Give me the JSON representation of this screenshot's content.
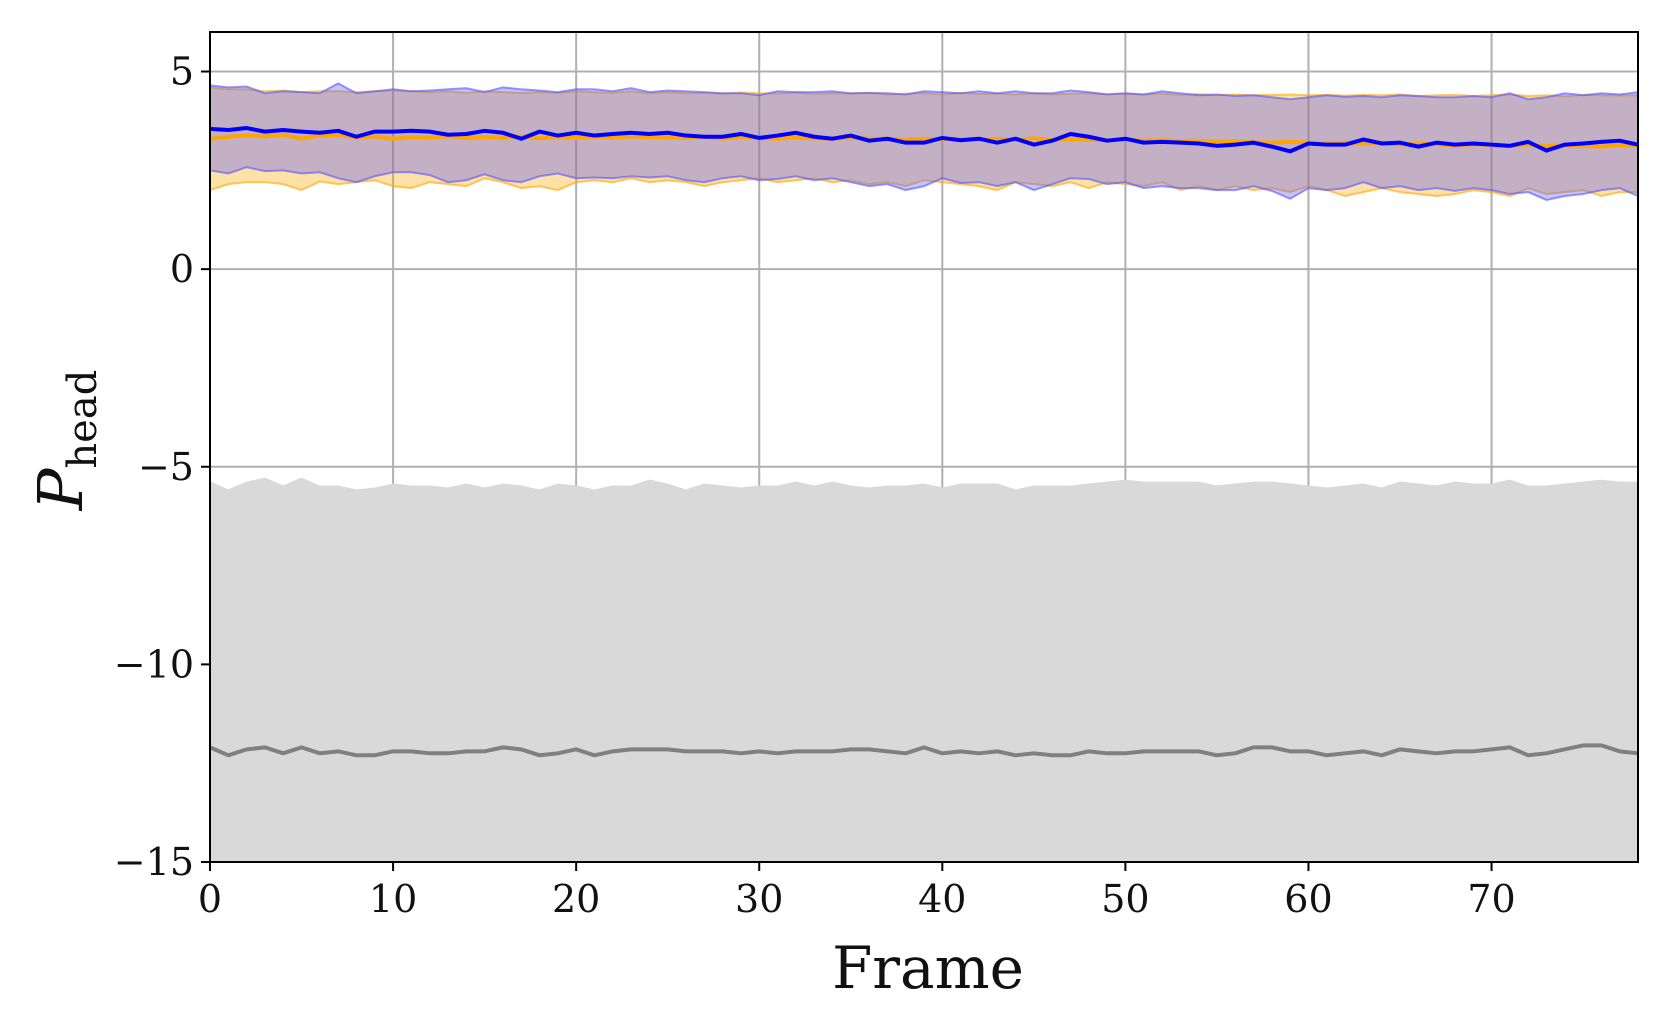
{
  "chart_data": {
    "type": "area",
    "title": "",
    "xlabel": "Frame",
    "ylabel": "P",
    "ylabel_subscript": "head",
    "xlim": [
      0,
      78
    ],
    "ylim": [
      -15,
      6
    ],
    "xticks": [
      0,
      10,
      20,
      30,
      40,
      50,
      60,
      70
    ],
    "yticks": [
      5,
      0,
      -5,
      -10,
      -15
    ],
    "xtick_labels": [
      "0",
      "10",
      "20",
      "30",
      "40",
      "50",
      "60",
      "70"
    ],
    "ytick_labels": [
      "5",
      "0",
      "−5",
      "−10",
      "−15"
    ],
    "grid": true,
    "legend": "none",
    "x": [
      0,
      1,
      2,
      3,
      4,
      5,
      6,
      7,
      8,
      9,
      10,
      11,
      12,
      13,
      14,
      15,
      16,
      17,
      18,
      19,
      20,
      21,
      22,
      23,
      24,
      25,
      26,
      27,
      28,
      29,
      30,
      31,
      32,
      33,
      34,
      35,
      36,
      37,
      38,
      39,
      40,
      41,
      42,
      43,
      44,
      45,
      46,
      47,
      48,
      49,
      50,
      51,
      52,
      53,
      54,
      55,
      56,
      57,
      58,
      59,
      60,
      61,
      62,
      63,
      64,
      65,
      66,
      67,
      68,
      69,
      70,
      71,
      72,
      73,
      74,
      75,
      76,
      77,
      78
    ],
    "series": [
      {
        "color": "#ffa500",
        "band_color": "#ffa500",
        "mean": [
          3.3,
          3.35,
          3.38,
          3.36,
          3.4,
          3.3,
          3.38,
          3.4,
          3.33,
          3.36,
          3.3,
          3.34,
          3.33,
          3.36,
          3.32,
          3.34,
          3.33,
          3.36,
          3.31,
          3.34,
          3.32,
          3.35,
          3.33,
          3.36,
          3.34,
          3.33,
          3.32,
          3.35,
          3.3,
          3.34,
          3.32,
          3.3,
          3.33,
          3.31,
          3.3,
          3.32,
          3.3,
          3.3,
          3.28,
          3.3,
          3.29,
          3.3,
          3.28,
          3.3,
          3.27,
          3.31,
          3.27,
          3.29,
          3.27,
          3.26,
          3.28,
          3.25,
          3.27,
          3.24,
          3.25,
          3.23,
          3.24,
          3.21,
          3.2,
          3.22,
          3.2,
          3.18,
          3.2,
          3.17,
          3.2,
          3.15,
          3.18,
          3.16,
          3.12,
          3.16,
          3.14,
          3.12,
          3.15,
          3.11,
          3.14,
          3.12,
          3.1,
          3.14,
          3.12
        ],
        "upper": [
          4.6,
          4.55,
          4.55,
          4.5,
          4.52,
          4.48,
          4.5,
          4.5,
          4.48,
          4.5,
          4.52,
          4.5,
          4.48,
          4.5,
          4.46,
          4.5,
          4.48,
          4.46,
          4.48,
          4.46,
          4.5,
          4.48,
          4.46,
          4.5,
          4.45,
          4.48,
          4.45,
          4.46,
          4.44,
          4.47,
          4.45,
          4.44,
          4.47,
          4.43,
          4.45,
          4.44,
          4.46,
          4.42,
          4.44,
          4.45,
          4.42,
          4.46,
          4.43,
          4.44,
          4.42,
          4.45,
          4.42,
          4.44,
          4.45,
          4.43,
          4.44,
          4.42,
          4.44,
          4.41,
          4.43,
          4.4,
          4.42,
          4.4,
          4.41,
          4.42,
          4.4,
          4.41,
          4.39,
          4.41,
          4.4,
          4.42,
          4.38,
          4.4,
          4.41,
          4.38,
          4.4,
          4.42,
          4.38,
          4.4,
          4.37,
          4.41,
          4.4,
          4.39,
          4.4
        ],
        "lower": [
          2.0,
          2.15,
          2.2,
          2.2,
          2.15,
          2.0,
          2.22,
          2.15,
          2.2,
          2.25,
          2.1,
          2.05,
          2.2,
          2.15,
          2.1,
          2.3,
          2.2,
          2.05,
          2.1,
          2.0,
          2.2,
          2.25,
          2.2,
          2.3,
          2.2,
          2.25,
          2.2,
          2.1,
          2.2,
          2.25,
          2.3,
          2.2,
          2.25,
          2.3,
          2.2,
          2.25,
          2.15,
          2.2,
          2.1,
          2.25,
          2.2,
          2.15,
          2.1,
          2.0,
          2.2,
          2.15,
          2.1,
          2.2,
          2.05,
          2.2,
          2.15,
          2.1,
          2.2,
          2.0,
          2.1,
          2.0,
          2.1,
          2.0,
          2.05,
          1.95,
          2.1,
          2.0,
          1.85,
          1.95,
          2.05,
          1.95,
          1.9,
          1.85,
          1.9,
          2.0,
          1.95,
          1.85,
          2.05,
          1.9,
          1.95,
          2.0,
          1.85,
          1.95,
          1.95
        ]
      },
      {
        "color": "#0000ff",
        "band_color": "#5555ff",
        "mean": [
          3.55,
          3.52,
          3.57,
          3.48,
          3.52,
          3.48,
          3.45,
          3.5,
          3.35,
          3.48,
          3.48,
          3.5,
          3.48,
          3.4,
          3.42,
          3.5,
          3.45,
          3.3,
          3.48,
          3.38,
          3.45,
          3.38,
          3.42,
          3.45,
          3.42,
          3.45,
          3.38,
          3.35,
          3.35,
          3.42,
          3.32,
          3.38,
          3.45,
          3.35,
          3.3,
          3.38,
          3.25,
          3.3,
          3.2,
          3.2,
          3.32,
          3.26,
          3.3,
          3.2,
          3.3,
          3.15,
          3.25,
          3.42,
          3.35,
          3.25,
          3.3,
          3.2,
          3.22,
          3.2,
          3.18,
          3.12,
          3.15,
          3.2,
          3.1,
          2.98,
          3.18,
          3.15,
          3.15,
          3.28,
          3.18,
          3.2,
          3.1,
          3.2,
          3.15,
          3.18,
          3.15,
          3.12,
          3.22,
          3.0,
          3.15,
          3.18,
          3.22,
          3.25,
          3.15
        ],
        "upper": [
          4.65,
          4.6,
          4.62,
          4.45,
          4.5,
          4.48,
          4.45,
          4.7,
          4.45,
          4.5,
          4.55,
          4.5,
          4.52,
          4.55,
          4.58,
          4.48,
          4.6,
          4.55,
          4.52,
          4.48,
          4.55,
          4.55,
          4.5,
          4.58,
          4.48,
          4.52,
          4.5,
          4.48,
          4.45,
          4.45,
          4.4,
          4.5,
          4.48,
          4.48,
          4.5,
          4.45,
          4.46,
          4.45,
          4.42,
          4.5,
          4.48,
          4.45,
          4.5,
          4.45,
          4.5,
          4.45,
          4.45,
          4.52,
          4.48,
          4.42,
          4.45,
          4.42,
          4.5,
          4.45,
          4.4,
          4.42,
          4.38,
          4.4,
          4.35,
          4.3,
          4.35,
          4.4,
          4.36,
          4.38,
          4.35,
          4.4,
          4.38,
          4.35,
          4.35,
          4.38,
          4.35,
          4.45,
          4.3,
          4.35,
          4.45,
          4.4,
          4.45,
          4.42,
          4.48
        ],
        "lower": [
          2.5,
          2.42,
          2.58,
          2.48,
          2.5,
          2.42,
          2.45,
          2.3,
          2.2,
          2.35,
          2.45,
          2.45,
          2.38,
          2.2,
          2.25,
          2.4,
          2.25,
          2.2,
          2.35,
          2.42,
          2.3,
          2.32,
          2.3,
          2.35,
          2.32,
          2.35,
          2.25,
          2.2,
          2.3,
          2.35,
          2.25,
          2.28,
          2.35,
          2.25,
          2.3,
          2.2,
          2.1,
          2.15,
          2.0,
          2.1,
          2.3,
          2.18,
          2.2,
          2.1,
          2.2,
          2.0,
          2.15,
          2.3,
          2.28,
          2.15,
          2.2,
          2.05,
          2.1,
          2.05,
          2.05,
          2.0,
          2.0,
          2.1,
          1.98,
          1.78,
          2.05,
          2.0,
          2.05,
          2.2,
          2.05,
          2.1,
          2.0,
          2.05,
          1.98,
          2.05,
          2.0,
          1.9,
          1.95,
          1.75,
          1.85,
          1.9,
          2.0,
          2.05,
          1.85
        ]
      },
      {
        "color": "#808080",
        "band_color": "#d9d9d9",
        "mean": [
          -12.1,
          -12.3,
          -12.15,
          -12.1,
          -12.25,
          -12.1,
          -12.25,
          -12.2,
          -12.3,
          -12.3,
          -12.2,
          -12.2,
          -12.25,
          -12.25,
          -12.2,
          -12.2,
          -12.1,
          -12.15,
          -12.3,
          -12.25,
          -12.15,
          -12.3,
          -12.2,
          -12.15,
          -12.15,
          -12.15,
          -12.2,
          -12.2,
          -12.2,
          -12.25,
          -12.2,
          -12.25,
          -12.2,
          -12.2,
          -12.2,
          -12.15,
          -12.15,
          -12.2,
          -12.25,
          -12.1,
          -12.25,
          -12.2,
          -12.25,
          -12.2,
          -12.3,
          -12.25,
          -12.3,
          -12.3,
          -12.2,
          -12.25,
          -12.25,
          -12.2,
          -12.2,
          -12.2,
          -12.2,
          -12.3,
          -12.25,
          -12.1,
          -12.1,
          -12.2,
          -12.2,
          -12.3,
          -12.25,
          -12.2,
          -12.3,
          -12.15,
          -12.2,
          -12.25,
          -12.2,
          -12.2,
          -12.15,
          -12.1,
          -12.3,
          -12.25,
          -12.15,
          -12.05,
          -12.05,
          -12.2,
          -12.25
        ],
        "upper": [
          -5.4,
          -5.6,
          -5.4,
          -5.3,
          -5.5,
          -5.3,
          -5.5,
          -5.5,
          -5.6,
          -5.55,
          -5.45,
          -5.5,
          -5.5,
          -5.55,
          -5.45,
          -5.55,
          -5.45,
          -5.5,
          -5.6,
          -5.45,
          -5.5,
          -5.6,
          -5.5,
          -5.5,
          -5.35,
          -5.45,
          -5.6,
          -5.45,
          -5.5,
          -5.55,
          -5.5,
          -5.5,
          -5.4,
          -5.5,
          -5.4,
          -5.5,
          -5.55,
          -5.5,
          -5.5,
          -5.45,
          -5.55,
          -5.45,
          -5.45,
          -5.45,
          -5.6,
          -5.5,
          -5.5,
          -5.5,
          -5.45,
          -5.4,
          -5.35,
          -5.4,
          -5.4,
          -5.4,
          -5.4,
          -5.5,
          -5.45,
          -5.4,
          -5.4,
          -5.45,
          -5.5,
          -5.55,
          -5.5,
          -5.45,
          -5.55,
          -5.4,
          -5.45,
          -5.5,
          -5.4,
          -5.45,
          -5.45,
          -5.35,
          -5.5,
          -5.5,
          -5.45,
          -5.4,
          -5.35,
          -5.4,
          -5.4
        ],
        "lower": [
          -15,
          -15,
          -15,
          -15,
          -15,
          -15,
          -15,
          -15,
          -15,
          -15,
          -15,
          -15,
          -15,
          -15,
          -15,
          -15,
          -15,
          -15,
          -15,
          -15,
          -15,
          -15,
          -15,
          -15,
          -15,
          -15,
          -15,
          -15,
          -15,
          -15,
          -15,
          -15,
          -15,
          -15,
          -15,
          -15,
          -15,
          -15,
          -15,
          -15,
          -15,
          -15,
          -15,
          -15,
          -15,
          -15,
          -15,
          -15,
          -15,
          -15,
          -15,
          -15,
          -15,
          -15,
          -15,
          -15,
          -15,
          -15,
          -15,
          -15,
          -15,
          -15,
          -15,
          -15,
          -15,
          -15,
          -15,
          -15,
          -15,
          -15,
          -15,
          -15,
          -15,
          -15,
          -15,
          -15,
          -15,
          -15,
          -15
        ]
      }
    ]
  }
}
